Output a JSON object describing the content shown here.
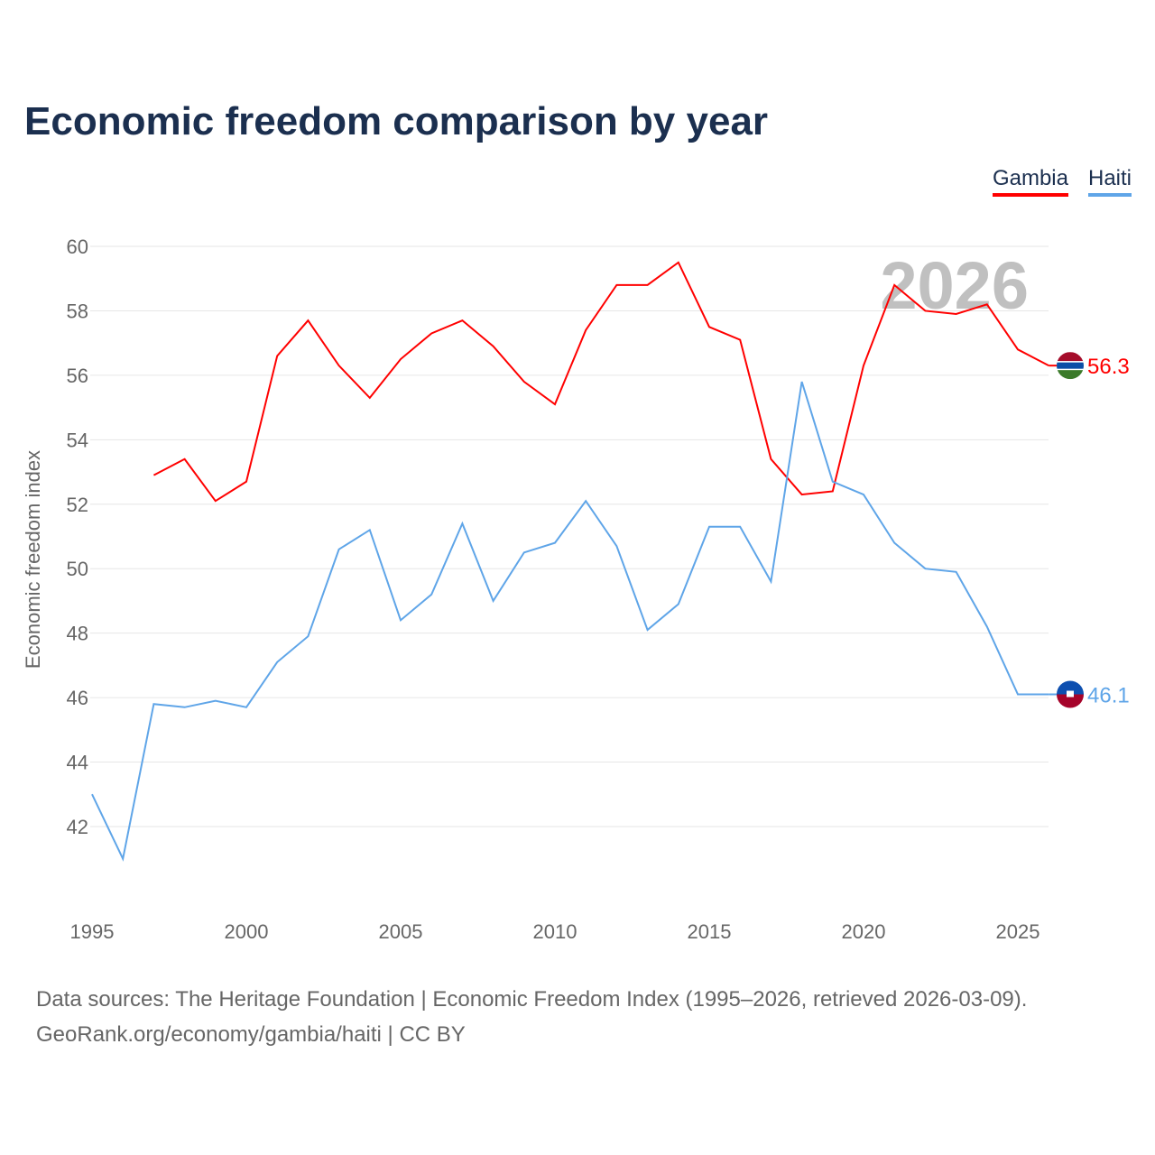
{
  "chart_data": {
    "type": "line",
    "title": "Economic freedom comparison by year",
    "ylabel": "Economic freedom index",
    "xlabel": "",
    "ylim": [
      40,
      60
    ],
    "xlim": [
      1995,
      2026
    ],
    "yticks": [
      "42",
      "44",
      "46",
      "48",
      "50",
      "52",
      "54",
      "56",
      "58",
      "60"
    ],
    "xticks": [
      "1995",
      "2000",
      "2005",
      "2010",
      "2015",
      "2020",
      "2025"
    ],
    "watermark_year": "2026",
    "grid": true,
    "legend_position": "top-right",
    "series": [
      {
        "name": "Gambia",
        "color": "#ff0000",
        "end_label": "56.3",
        "flag": "gambia-flag",
        "x": [
          1997,
          1998,
          1999,
          2000,
          2001,
          2002,
          2003,
          2004,
          2005,
          2006,
          2007,
          2008,
          2009,
          2010,
          2011,
          2012,
          2013,
          2014,
          2015,
          2016,
          2017,
          2018,
          2019,
          2020,
          2021,
          2022,
          2023,
          2024,
          2025,
          2026
        ],
        "values": [
          52.9,
          53.4,
          52.1,
          52.7,
          56.6,
          57.7,
          56.3,
          55.3,
          56.5,
          57.3,
          57.7,
          56.9,
          55.8,
          55.1,
          57.4,
          58.8,
          58.8,
          59.5,
          57.5,
          57.1,
          53.4,
          52.3,
          52.4,
          56.3,
          58.8,
          58.0,
          57.9,
          58.2,
          56.8,
          56.3
        ]
      },
      {
        "name": "Haiti",
        "color": "#5fa5e8",
        "end_label": "46.1",
        "flag": "haiti-flag",
        "x": [
          1995,
          1996,
          1997,
          1998,
          1999,
          2000,
          2001,
          2002,
          2003,
          2004,
          2005,
          2006,
          2007,
          2008,
          2009,
          2010,
          2011,
          2012,
          2013,
          2014,
          2015,
          2016,
          2017,
          2018,
          2019,
          2020,
          2021,
          2022,
          2023,
          2024,
          2025,
          2026
        ],
        "values": [
          43.0,
          41.0,
          45.8,
          45.7,
          45.9,
          45.7,
          47.1,
          47.9,
          50.6,
          51.2,
          48.4,
          49.2,
          51.4,
          49.0,
          50.5,
          50.8,
          52.1,
          50.7,
          48.1,
          48.9,
          51.3,
          51.3,
          49.6,
          55.8,
          52.7,
          52.3,
          50.8,
          50.0,
          49.9,
          48.2,
          46.1,
          46.1
        ]
      }
    ]
  },
  "footer": {
    "line1": "Data sources: The Heritage Foundation | Economic Freedom Index (1995–2026, retrieved 2026-03-09).",
    "line2": "GeoRank.org/economy/gambia/haiti | CC BY"
  }
}
